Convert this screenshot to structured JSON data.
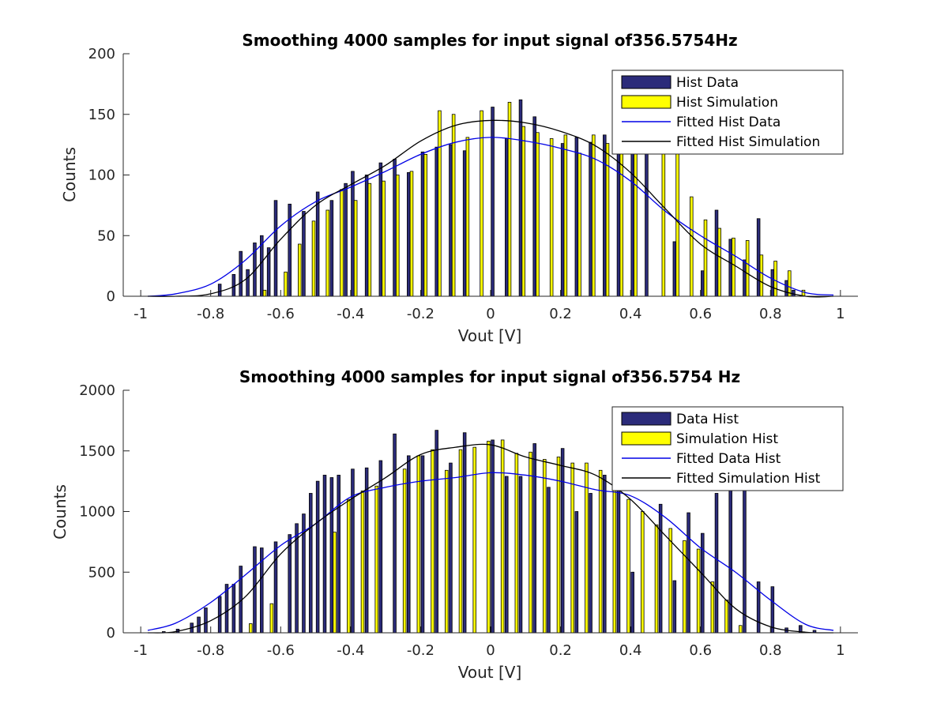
{
  "colors": {
    "data_bar": "#2b2b7a",
    "simulation_bar": "#ffff00",
    "fitted_data": "#0000e6",
    "fitted_simulation": "#000000",
    "axis": "#262626"
  },
  "chart_data": [
    {
      "type": "bar",
      "title": "Smoothing 4000 samples for input signal of356.5754Hz",
      "xlabel": "Vout [V]",
      "ylabel": "Counts",
      "xlim": [
        -1.05,
        1.05
      ],
      "ylim": [
        0,
        200
      ],
      "xticks": [
        -1,
        -0.8,
        -0.6,
        -0.4,
        -0.2,
        0,
        0.2,
        0.4,
        0.6,
        0.8,
        1
      ],
      "xtick_labels": [
        "-1",
        "-0.8",
        "-0.6",
        "-0.4",
        "-0.2",
        "0",
        "0.2",
        "0.4",
        "0.6",
        "0.8",
        "1"
      ],
      "yticks": [
        0,
        50,
        100,
        150,
        200
      ],
      "ytick_labels": [
        "0",
        "50",
        "100",
        "150",
        "200"
      ],
      "legend_position": "top-right",
      "x": [
        -0.97,
        -0.95,
        -0.93,
        -0.91,
        -0.89,
        -0.87,
        -0.85,
        -0.83,
        -0.81,
        -0.79,
        -0.77,
        -0.75,
        -0.73,
        -0.71,
        -0.69,
        -0.67,
        -0.65,
        -0.63,
        -0.61,
        -0.59,
        -0.57,
        -0.55,
        -0.53,
        -0.51,
        -0.49,
        -0.47,
        -0.45,
        -0.43,
        -0.41,
        -0.39,
        -0.37,
        -0.35,
        -0.33,
        -0.31,
        -0.29,
        -0.27,
        -0.25,
        -0.23,
        -0.21,
        -0.19,
        -0.17,
        -0.15,
        -0.13,
        -0.11,
        -0.09,
        -0.07,
        -0.05,
        -0.03,
        -0.01,
        0.01,
        0.03,
        0.05,
        0.07,
        0.09,
        0.11,
        0.13,
        0.15,
        0.17,
        0.19,
        0.21,
        0.23,
        0.25,
        0.27,
        0.29,
        0.31,
        0.33,
        0.35,
        0.37,
        0.39,
        0.41,
        0.43,
        0.45,
        0.47,
        0.49,
        0.51,
        0.53,
        0.55,
        0.57,
        0.59,
        0.61,
        0.63,
        0.65,
        0.67,
        0.69,
        0.71,
        0.73,
        0.75,
        0.77,
        0.79,
        0.81,
        0.83,
        0.85,
        0.87,
        0.89,
        0.91,
        0.93,
        0.95,
        0.97
      ],
      "series": [
        {
          "name": "Hist Data",
          "kind": "bar",
          "values": [
            0,
            0,
            0,
            0,
            0,
            0,
            0,
            0,
            0,
            0,
            10,
            0,
            18,
            37,
            22,
            44,
            50,
            40,
            79,
            0,
            76,
            0,
            70,
            0,
            86,
            0,
            79,
            0,
            93,
            103,
            0,
            100,
            0,
            110,
            0,
            113,
            0,
            102,
            0,
            119,
            0,
            123,
            0,
            125,
            0,
            120,
            0,
            0,
            0,
            156,
            0,
            130,
            0,
            162,
            0,
            148,
            0,
            0,
            0,
            126,
            0,
            131,
            0,
            127,
            0,
            133,
            0,
            124,
            0,
            128,
            0,
            123,
            0,
            0,
            0,
            45,
            0,
            0,
            0,
            21,
            0,
            71,
            0,
            47,
            0,
            30,
            0,
            64,
            0,
            22,
            0,
            13,
            5,
            0,
            0,
            0,
            0,
            0
          ]
        },
        {
          "name": "Hist Simulation",
          "kind": "bar",
          "values": [
            0,
            0,
            0,
            0,
            0,
            0,
            0,
            0,
            0,
            0,
            0,
            0,
            0,
            0,
            0,
            0,
            5,
            0,
            0,
            20,
            0,
            43,
            0,
            62,
            0,
            71,
            0,
            88,
            0,
            79,
            0,
            93,
            0,
            95,
            0,
            100,
            0,
            103,
            0,
            117,
            0,
            153,
            0,
            150,
            0,
            131,
            0,
            153,
            0,
            0,
            0,
            160,
            0,
            140,
            0,
            135,
            0,
            130,
            0,
            133,
            0,
            118,
            0,
            133,
            0,
            126,
            0,
            132,
            0,
            145,
            0,
            0,
            0,
            150,
            0,
            132,
            0,
            82,
            0,
            63,
            0,
            56,
            0,
            48,
            0,
            46,
            0,
            34,
            0,
            29,
            0,
            21,
            0,
            5,
            0,
            0,
            0,
            0
          ]
        },
        {
          "name": "Fitted Hist Data",
          "kind": "line",
          "x": [
            -0.98,
            -0.9,
            -0.8,
            -0.7,
            -0.6,
            -0.5,
            -0.4,
            -0.3,
            -0.2,
            -0.1,
            0,
            0.1,
            0.2,
            0.3,
            0.4,
            0.5,
            0.6,
            0.7,
            0.8,
            0.9,
            0.98
          ],
          "values": [
            0,
            2,
            10,
            30,
            58,
            78,
            90,
            103,
            117,
            127,
            131,
            128,
            122,
            113,
            95,
            70,
            50,
            33,
            15,
            3,
            1
          ]
        },
        {
          "name": "Fitted Hist Simulation",
          "kind": "line",
          "x": [
            -0.98,
            -0.9,
            -0.8,
            -0.7,
            -0.6,
            -0.5,
            -0.4,
            -0.3,
            -0.2,
            -0.1,
            0,
            0.1,
            0.2,
            0.3,
            0.4,
            0.5,
            0.6,
            0.7,
            0.8,
            0.9,
            0.98
          ],
          "values": [
            0,
            0,
            2,
            14,
            47,
            75,
            92,
            108,
            128,
            141,
            145,
            143,
            136,
            124,
            102,
            72,
            43,
            25,
            8,
            0,
            0
          ]
        }
      ]
    },
    {
      "type": "bar",
      "title": "Smoothing 4000 samples for input signal of356.5754 Hz",
      "xlabel": "Vout [V]",
      "ylabel": "Counts",
      "xlim": [
        -1.05,
        1.05
      ],
      "ylim": [
        0,
        2000
      ],
      "xticks": [
        -1,
        -0.8,
        -0.6,
        -0.4,
        -0.2,
        0,
        0.2,
        0.4,
        0.6,
        0.8,
        1
      ],
      "xtick_labels": [
        "-1",
        "-0.8",
        "-0.6",
        "-0.4",
        "-0.2",
        "0",
        "0.2",
        "0.4",
        "0.6",
        "0.8",
        "1"
      ],
      "yticks": [
        0,
        500,
        1000,
        1500,
        2000
      ],
      "ytick_labels": [
        "0",
        "500",
        "1000",
        "1500",
        "2000"
      ],
      "legend_position": "top-right",
      "x": [
        -0.97,
        -0.95,
        -0.93,
        -0.91,
        -0.89,
        -0.87,
        -0.85,
        -0.83,
        -0.81,
        -0.79,
        -0.77,
        -0.75,
        -0.73,
        -0.71,
        -0.69,
        -0.67,
        -0.65,
        -0.63,
        -0.61,
        -0.59,
        -0.57,
        -0.55,
        -0.53,
        -0.51,
        -0.49,
        -0.47,
        -0.45,
        -0.43,
        -0.41,
        -0.39,
        -0.37,
        -0.35,
        -0.33,
        -0.31,
        -0.29,
        -0.27,
        -0.25,
        -0.23,
        -0.21,
        -0.19,
        -0.17,
        -0.15,
        -0.13,
        -0.11,
        -0.09,
        -0.07,
        -0.05,
        -0.03,
        -0.01,
        0.01,
        0.03,
        0.05,
        0.07,
        0.09,
        0.11,
        0.13,
        0.15,
        0.17,
        0.19,
        0.21,
        0.23,
        0.25,
        0.27,
        0.29,
        0.31,
        0.33,
        0.35,
        0.37,
        0.39,
        0.41,
        0.43,
        0.45,
        0.47,
        0.49,
        0.51,
        0.53,
        0.55,
        0.57,
        0.59,
        0.61,
        0.63,
        0.65,
        0.67,
        0.69,
        0.71,
        0.73,
        0.75,
        0.77,
        0.79,
        0.81,
        0.83,
        0.85,
        0.87,
        0.89,
        0.91,
        0.93,
        0.95,
        0.97
      ],
      "series": [
        {
          "name": "Data Hist",
          "kind": "bar",
          "values": [
            0,
            0,
            10,
            0,
            30,
            0,
            80,
            130,
            205,
            0,
            300,
            400,
            400,
            550,
            0,
            710,
            700,
            0,
            750,
            0,
            810,
            900,
            980,
            1150,
            1250,
            1300,
            1280,
            1300,
            0,
            1350,
            0,
            1360,
            0,
            1420,
            0,
            1640,
            0,
            1460,
            0,
            1460,
            0,
            1670,
            0,
            1400,
            0,
            1650,
            0,
            0,
            0,
            1590,
            0,
            1290,
            0,
            1290,
            0,
            1560,
            0,
            1200,
            0,
            1520,
            0,
            1000,
            0,
            1150,
            0,
            1300,
            0,
            1220,
            0,
            500,
            0,
            0,
            0,
            1060,
            0,
            430,
            0,
            990,
            0,
            820,
            0,
            1150,
            0,
            1510,
            0,
            1280,
            0,
            420,
            0,
            380,
            0,
            40,
            0,
            60,
            0,
            20,
            0,
            0
          ]
        },
        {
          "name": "Simulation Hist",
          "kind": "bar",
          "values": [
            0,
            0,
            0,
            0,
            0,
            0,
            0,
            0,
            0,
            0,
            0,
            0,
            0,
            0,
            75,
            0,
            0,
            240,
            0,
            0,
            0,
            0,
            0,
            0,
            0,
            0,
            830,
            0,
            1100,
            0,
            1170,
            0,
            1210,
            0,
            0,
            0,
            1350,
            0,
            1460,
            0,
            1510,
            0,
            1340,
            0,
            1510,
            0,
            1530,
            0,
            1580,
            0,
            1590,
            0,
            1480,
            0,
            1490,
            0,
            1430,
            0,
            1450,
            0,
            1400,
            0,
            1400,
            0,
            1340,
            0,
            1300,
            0,
            1100,
            0,
            1000,
            0,
            890,
            0,
            860,
            0,
            760,
            0,
            690,
            0,
            420,
            0,
            270,
            0,
            60,
            0,
            0,
            0,
            0,
            0,
            0,
            0,
            0,
            0,
            0,
            0,
            0,
            0
          ]
        },
        {
          "name": "Fitted Data Hist",
          "kind": "line",
          "x": [
            -0.98,
            -0.9,
            -0.8,
            -0.7,
            -0.6,
            -0.5,
            -0.4,
            -0.3,
            -0.2,
            -0.1,
            0,
            0.1,
            0.2,
            0.3,
            0.4,
            0.5,
            0.6,
            0.7,
            0.8,
            0.9,
            0.98
          ],
          "values": [
            20,
            80,
            250,
            480,
            720,
            900,
            1120,
            1200,
            1250,
            1280,
            1320,
            1300,
            1250,
            1180,
            1130,
            950,
            700,
            500,
            270,
            70,
            20
          ]
        },
        {
          "name": "Fitted Simulation Hist",
          "kind": "line",
          "x": [
            -0.98,
            -0.9,
            -0.8,
            -0.7,
            -0.6,
            -0.5,
            -0.4,
            -0.3,
            -0.2,
            -0.1,
            0,
            0.1,
            0.2,
            0.3,
            0.4,
            0.5,
            0.6,
            0.7,
            0.8,
            0.9,
            0.98
          ],
          "values": [
            0,
            10,
            100,
            300,
            650,
            900,
            1100,
            1280,
            1470,
            1530,
            1550,
            1450,
            1380,
            1300,
            1100,
            800,
            500,
            200,
            50,
            5,
            0
          ]
        }
      ]
    }
  ]
}
